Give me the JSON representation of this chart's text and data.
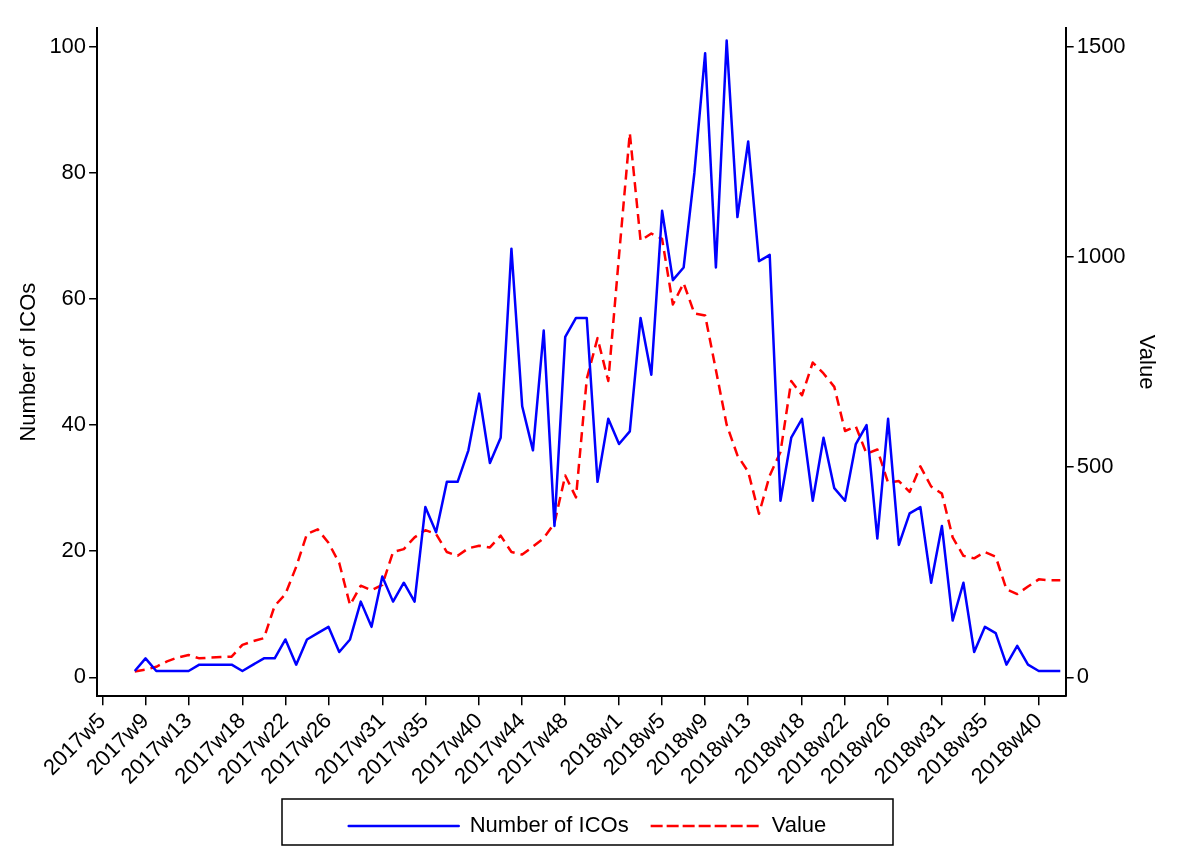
{
  "chart_data": {
    "type": "line",
    "xlabel": null,
    "ylabel": "Number of ICOs",
    "y2label": "Value",
    "categories": [
      "2017w5",
      null,
      null,
      null,
      "2017w9",
      null,
      null,
      null,
      "2017w13",
      null,
      null,
      null,
      null,
      "2017w18",
      null,
      null,
      null,
      "2017w22",
      null,
      null,
      null,
      "2017w26",
      null,
      null,
      null,
      null,
      "2017w31",
      null,
      null,
      null,
      "2017w35",
      null,
      null,
      null,
      null,
      "2017w40",
      null,
      null,
      null,
      "2017w44",
      null,
      null,
      null,
      "2017w48",
      null,
      null,
      null,
      null,
      "2018w1",
      null,
      null,
      null,
      "2018w5",
      null,
      null,
      null,
      "2018w9",
      null,
      null,
      null,
      "2018w13",
      null,
      null,
      null,
      null,
      "2018w18",
      null,
      null,
      null,
      "2018w22",
      null,
      null,
      null,
      "2018w26",
      null,
      null,
      null,
      null,
      "2018w31",
      null,
      null,
      null,
      "2018w35",
      null,
      null,
      null,
      null,
      "2018w40",
      null,
      null
    ],
    "series": [
      {
        "name": "Number of ICOs",
        "color": "#0000ff",
        "line_style": "solid",
        "axis": "y",
        "values": [
          null,
          null,
          null,
          1,
          3,
          1,
          1,
          1,
          1,
          2,
          2,
          2,
          2,
          1,
          2,
          3,
          3,
          6,
          2,
          6,
          7,
          8,
          4,
          6,
          12,
          8,
          16,
          12,
          15,
          12,
          27,
          23,
          31,
          31,
          36,
          45,
          34,
          38,
          68,
          43,
          36,
          55,
          24,
          54,
          57,
          57,
          31,
          41,
          37,
          39,
          57,
          48,
          74,
          63,
          65,
          80,
          99,
          65,
          101,
          73,
          85,
          66,
          67,
          28,
          38,
          41,
          28,
          38,
          30,
          28,
          37,
          40,
          22,
          41,
          21,
          26,
          27,
          15,
          24,
          9,
          15,
          4,
          8,
          7,
          2,
          5,
          2,
          1,
          1,
          1
        ]
      },
      {
        "name": "Value",
        "color": "#ff0000",
        "line_style": "dashed",
        "axis": "y2",
        "values": [
          null,
          null,
          null,
          14,
          18,
          25,
          38,
          47,
          53,
          45,
          47,
          48,
          49,
          77,
          86,
          93,
          170,
          198,
          263,
          341,
          352,
          320,
          272,
          172,
          218,
          207,
          220,
          298,
          305,
          333,
          350,
          341,
          298,
          289,
          307,
          313,
          309,
          337,
          298,
          292,
          311,
          331,
          367,
          480,
          428,
          710,
          807,
          705,
          1004,
          1295,
          1039,
          1056,
          1043,
          887,
          938,
          866,
          861,
          731,
          601,
          528,
          489,
          389,
          480,
          536,
          705,
          671,
          749,
          723,
          691,
          586,
          597,
          532,
          542,
          463,
          467,
          441,
          502,
          454,
          437,
          333,
          289,
          283,
          298,
          287,
          209,
          198,
          216,
          233,
          231,
          231
        ]
      }
    ],
    "ylim": [
      -3,
      103
    ],
    "yticks": [
      0,
      20,
      40,
      60,
      80,
      100
    ],
    "y2lim": [
      -45,
      1545
    ],
    "y2ticks": [
      0,
      500,
      1000,
      1500
    ],
    "grid": false,
    "legend": "bottom",
    "marker": "none"
  }
}
